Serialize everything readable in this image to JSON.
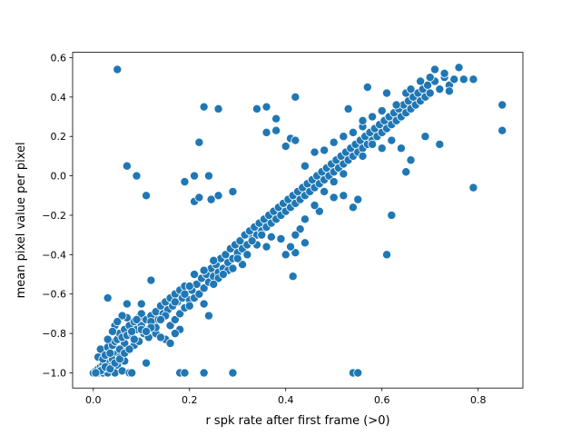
{
  "chart_data": {
    "type": "scatter",
    "title": "",
    "xlabel": "r spk rate after first frame (>0)",
    "ylabel": "mean pixel value per pixel",
    "xlim": [
      -0.043,
      0.893
    ],
    "ylim": [
      -1.077,
      0.627
    ],
    "xticks": [
      0.0,
      0.2,
      0.4,
      0.6,
      0.8
    ],
    "xtick_labels": [
      "0.0",
      "0.2",
      "0.4",
      "0.6",
      "0.8"
    ],
    "yticks": [
      -1.0,
      -0.8,
      -0.6,
      -0.4,
      -0.2,
      0.0,
      0.2,
      0.4,
      0.6
    ],
    "ytick_labels": [
      "−1.0",
      "−0.8",
      "−0.6",
      "−0.4",
      "−0.2",
      "0.0",
      "0.2",
      "0.4",
      "0.6"
    ],
    "grid": false,
    "legend": "none",
    "marker_color": "#1f77b4",
    "marker_edge_color": "#ffffff",
    "points": [
      [
        0.0,
        -1.0
      ],
      [
        0.005,
        -0.99
      ],
      [
        0.01,
        -0.98
      ],
      [
        0.01,
        -1.0
      ],
      [
        0.015,
        -0.97
      ],
      [
        0.02,
        -1.0
      ],
      [
        0.02,
        -0.96
      ],
      [
        0.025,
        -0.99
      ],
      [
        0.03,
        -0.95
      ],
      [
        0.03,
        -1.0
      ],
      [
        0.035,
        -0.97
      ],
      [
        0.04,
        -0.98
      ],
      [
        0.04,
        -0.93
      ],
      [
        0.045,
        -1.0
      ],
      [
        0.05,
        -0.9
      ],
      [
        0.05,
        -0.96
      ],
      [
        0.055,
        -0.92
      ],
      [
        0.06,
        -0.88
      ],
      [
        0.06,
        -0.99
      ],
      [
        0.065,
        -0.85
      ],
      [
        0.07,
        -0.89
      ],
      [
        0.075,
        -1.0
      ],
      [
        0.01,
        -0.92
      ],
      [
        0.015,
        -0.88
      ],
      [
        0.02,
        -0.93
      ],
      [
        0.025,
        -0.91
      ],
      [
        0.03,
        -0.87
      ],
      [
        0.035,
        -0.9
      ],
      [
        0.04,
        -0.86
      ],
      [
        0.045,
        -0.84
      ],
      [
        0.05,
        -0.83
      ],
      [
        0.055,
        -0.8
      ],
      [
        0.06,
        -0.82
      ],
      [
        0.065,
        -0.78
      ],
      [
        0.07,
        -0.81
      ],
      [
        0.075,
        -0.76
      ],
      [
        0.08,
        -0.8
      ],
      [
        0.085,
        -0.74
      ],
      [
        0.09,
        -0.78
      ],
      [
        0.095,
        -0.72
      ],
      [
        0.1,
        -0.76
      ],
      [
        0.1,
        -0.7
      ],
      [
        0.105,
        -0.8
      ],
      [
        0.11,
        -0.73
      ],
      [
        0.115,
        -0.78
      ],
      [
        0.12,
        -0.71
      ],
      [
        0.125,
        -0.75
      ],
      [
        0.13,
        -0.69
      ],
      [
        0.135,
        -0.73
      ],
      [
        0.14,
        -0.66
      ],
      [
        0.145,
        -0.7
      ],
      [
        0.15,
        -0.64
      ],
      [
        0.155,
        -0.68
      ],
      [
        0.16,
        -0.62
      ],
      [
        0.165,
        -0.66
      ],
      [
        0.17,
        -0.6
      ],
      [
        0.175,
        -0.64
      ],
      [
        0.18,
        -0.58
      ],
      [
        0.185,
        -0.62
      ],
      [
        0.19,
        -0.56
      ],
      [
        0.045,
        -0.76
      ],
      [
        0.055,
        -0.88
      ],
      [
        0.065,
        -0.94
      ],
      [
        0.085,
        -0.86
      ],
      [
        0.095,
        -0.84
      ],
      [
        0.115,
        -0.82
      ],
      [
        0.13,
        -0.8
      ],
      [
        0.15,
        -0.83
      ],
      [
        0.16,
        -0.76
      ],
      [
        0.17,
        -0.73
      ],
      [
        0.18,
        -0.7
      ],
      [
        0.19,
        -0.67
      ],
      [
        0.2,
        -0.63
      ],
      [
        0.205,
        -0.58
      ],
      [
        0.21,
        -0.62
      ],
      [
        0.215,
        -0.55
      ],
      [
        0.22,
        -0.6
      ],
      [
        0.225,
        -0.52
      ],
      [
        0.23,
        -0.57
      ],
      [
        0.235,
        -0.5
      ],
      [
        0.24,
        -0.54
      ],
      [
        0.245,
        -0.47
      ],
      [
        0.25,
        -0.51
      ],
      [
        0.255,
        -0.45
      ],
      [
        0.26,
        -0.49
      ],
      [
        0.265,
        -0.42
      ],
      [
        0.27,
        -0.47
      ],
      [
        0.275,
        -0.4
      ],
      [
        0.28,
        -0.44
      ],
      [
        0.285,
        -0.37
      ],
      [
        0.29,
        -0.42
      ],
      [
        0.295,
        -0.35
      ],
      [
        0.3,
        -0.39
      ],
      [
        0.305,
        -0.33
      ],
      [
        0.31,
        -0.37
      ],
      [
        0.315,
        -0.3
      ],
      [
        0.32,
        -0.35
      ],
      [
        0.325,
        -0.28
      ],
      [
        0.33,
        -0.32
      ],
      [
        0.335,
        -0.26
      ],
      [
        0.34,
        -0.3
      ],
      [
        0.345,
        -0.24
      ],
      [
        0.35,
        -0.28
      ],
      [
        0.355,
        -0.22
      ],
      [
        0.36,
        -0.26
      ],
      [
        0.365,
        -0.2
      ],
      [
        0.37,
        -0.24
      ],
      [
        0.375,
        -0.18
      ],
      [
        0.38,
        -0.22
      ],
      [
        0.385,
        -0.16
      ],
      [
        0.39,
        -0.2
      ],
      [
        0.395,
        -0.14
      ],
      [
        0.4,
        -0.18
      ],
      [
        0.405,
        -0.12
      ],
      [
        0.41,
        -0.16
      ],
      [
        0.415,
        -0.1
      ],
      [
        0.42,
        -0.14
      ],
      [
        0.425,
        -0.08
      ],
      [
        0.43,
        -0.12
      ],
      [
        0.435,
        -0.06
      ],
      [
        0.44,
        -0.1
      ],
      [
        0.445,
        -0.04
      ],
      [
        0.45,
        -0.08
      ],
      [
        0.455,
        -0.02
      ],
      [
        0.46,
        -0.06
      ],
      [
        0.465,
        0.0
      ],
      [
        0.47,
        -0.04
      ],
      [
        0.475,
        0.02
      ],
      [
        0.48,
        -0.02
      ],
      [
        0.485,
        0.04
      ],
      [
        0.49,
        0.0
      ],
      [
        0.495,
        0.06
      ],
      [
        0.5,
        0.02
      ],
      [
        0.505,
        0.08
      ],
      [
        0.51,
        0.04
      ],
      [
        0.515,
        0.1
      ],
      [
        0.52,
        0.06
      ],
      [
        0.525,
        0.12
      ],
      [
        0.53,
        0.08
      ],
      [
        0.535,
        0.14
      ],
      [
        0.54,
        0.1
      ],
      [
        0.545,
        0.16
      ],
      [
        0.55,
        0.12
      ],
      [
        0.555,
        0.18
      ],
      [
        0.56,
        0.14
      ],
      [
        0.565,
        0.2
      ],
      [
        0.57,
        0.16
      ],
      [
        0.575,
        0.22
      ],
      [
        0.58,
        0.18
      ],
      [
        0.585,
        0.24
      ],
      [
        0.59,
        0.2
      ],
      [
        0.595,
        0.26
      ],
      [
        0.6,
        0.22
      ],
      [
        0.605,
        0.28
      ],
      [
        0.61,
        0.24
      ],
      [
        0.615,
        0.3
      ],
      [
        0.62,
        0.26
      ],
      [
        0.625,
        0.32
      ],
      [
        0.63,
        0.28
      ],
      [
        0.635,
        0.34
      ],
      [
        0.64,
        0.3
      ],
      [
        0.645,
        0.36
      ],
      [
        0.65,
        0.32
      ],
      [
        0.655,
        0.38
      ],
      [
        0.66,
        0.34
      ],
      [
        0.665,
        0.4
      ],
      [
        0.67,
        0.36
      ],
      [
        0.675,
        0.42
      ],
      [
        0.68,
        0.38
      ],
      [
        0.685,
        0.44
      ],
      [
        0.69,
        0.4
      ],
      [
        0.695,
        0.46
      ],
      [
        0.7,
        0.42
      ],
      [
        0.71,
        0.48
      ],
      [
        0.72,
        0.44
      ],
      [
        0.73,
        0.5
      ],
      [
        0.74,
        0.46
      ],
      [
        0.75,
        0.49
      ],
      [
        0.76,
        0.55
      ],
      [
        0.77,
        0.49
      ],
      [
        0.79,
        0.49
      ],
      [
        0.85,
        0.36
      ],
      [
        0.85,
        0.23
      ],
      [
        0.79,
        -0.06
      ],
      [
        0.05,
        0.54
      ],
      [
        0.07,
        0.05
      ],
      [
        0.09,
        0.0
      ],
      [
        0.11,
        -0.1
      ],
      [
        0.12,
        -0.53
      ],
      [
        0.03,
        -0.62
      ],
      [
        0.07,
        -0.65
      ],
      [
        0.1,
        -0.65
      ],
      [
        0.11,
        -0.95
      ],
      [
        0.08,
        -1.0
      ],
      [
        0.18,
        -1.0
      ],
      [
        0.19,
        -1.0
      ],
      [
        0.23,
        -1.0
      ],
      [
        0.29,
        -1.0
      ],
      [
        0.54,
        -1.0
      ],
      [
        0.55,
        -1.0
      ],
      [
        0.22,
        0.17
      ],
      [
        0.24,
        0.0
      ],
      [
        0.21,
        0.0
      ],
      [
        0.19,
        -0.03
      ],
      [
        0.21,
        -0.13
      ],
      [
        0.22,
        -0.11
      ],
      [
        0.245,
        -0.12
      ],
      [
        0.26,
        -0.1
      ],
      [
        0.29,
        -0.08
      ],
      [
        0.23,
        0.35
      ],
      [
        0.26,
        0.34
      ],
      [
        0.34,
        0.34
      ],
      [
        0.36,
        0.35
      ],
      [
        0.38,
        0.29
      ],
      [
        0.42,
        0.4
      ],
      [
        0.41,
        0.19
      ],
      [
        0.42,
        0.18
      ],
      [
        0.4,
        0.15
      ],
      [
        0.36,
        0.22
      ],
      [
        0.38,
        0.23
      ],
      [
        0.53,
        0.34
      ],
      [
        0.57,
        0.45
      ],
      [
        0.56,
        0.25
      ],
      [
        0.61,
        0.42
      ],
      [
        0.6,
        0.14
      ],
      [
        0.62,
        -0.2
      ],
      [
        0.61,
        -0.4
      ],
      [
        0.55,
        -0.12
      ],
      [
        0.54,
        -0.16
      ],
      [
        0.47,
        -0.18
      ],
      [
        0.52,
        -0.1
      ],
      [
        0.5,
        -0.11
      ],
      [
        0.44,
        -0.34
      ],
      [
        0.42,
        -0.39
      ],
      [
        0.415,
        -0.51
      ],
      [
        0.41,
        -0.36
      ],
      [
        0.4,
        -0.4
      ],
      [
        0.36,
        -0.36
      ],
      [
        0.34,
        -0.35
      ],
      [
        0.31,
        -0.45
      ],
      [
        0.28,
        -0.48
      ],
      [
        0.26,
        -0.52
      ],
      [
        0.25,
        -0.55
      ],
      [
        0.24,
        -0.71
      ],
      [
        0.23,
        -0.65
      ],
      [
        0.2,
        -0.66
      ],
      [
        0.18,
        -0.78
      ],
      [
        0.17,
        -0.8
      ],
      [
        0.16,
        -0.85
      ],
      [
        0.14,
        -0.82
      ],
      [
        0.13,
        -0.77
      ],
      [
        0.12,
        -0.74
      ],
      [
        0.1,
        -0.78
      ],
      [
        0.09,
        -0.73
      ],
      [
        0.08,
        -0.79
      ],
      [
        0.07,
        -0.72
      ],
      [
        0.06,
        -0.71
      ],
      [
        0.05,
        -0.74
      ],
      [
        0.04,
        -0.79
      ],
      [
        0.03,
        -0.83
      ],
      [
        0.44,
        0.05
      ],
      [
        0.46,
        0.12
      ],
      [
        0.48,
        0.13
      ],
      [
        0.5,
        0.17
      ],
      [
        0.52,
        0.2
      ],
      [
        0.54,
        0.22
      ],
      [
        0.56,
        0.28
      ],
      [
        0.58,
        0.3
      ],
      [
        0.6,
        0.33
      ],
      [
        0.63,
        0.36
      ],
      [
        0.65,
        0.42
      ],
      [
        0.66,
        0.44
      ],
      [
        0.68,
        0.48
      ],
      [
        0.7,
        0.5
      ],
      [
        0.71,
        0.54
      ],
      [
        0.73,
        0.52
      ],
      [
        0.74,
        0.43
      ],
      [
        0.72,
        0.16
      ],
      [
        0.69,
        0.2
      ],
      [
        0.66,
        0.08
      ],
      [
        0.65,
        0.02
      ],
      [
        0.64,
        0.14
      ],
      [
        0.62,
        0.18
      ],
      [
        0.58,
        0.16
      ],
      [
        0.56,
        0.1
      ],
      [
        0.52,
        0.01
      ],
      [
        0.5,
        -0.03
      ],
      [
        0.48,
        -0.08
      ],
      [
        0.46,
        -0.15
      ],
      [
        0.44,
        -0.22
      ],
      [
        0.43,
        -0.27
      ],
      [
        0.42,
        -0.3
      ],
      [
        0.39,
        -0.32
      ],
      [
        0.37,
        -0.31
      ],
      [
        0.35,
        -0.3
      ],
      [
        0.33,
        -0.33
      ],
      [
        0.32,
        -0.4
      ],
      [
        0.3,
        -0.42
      ],
      [
        0.29,
        -0.47
      ],
      [
        0.27,
        -0.5
      ],
      [
        0.25,
        -0.43
      ],
      [
        0.23,
        -0.48
      ],
      [
        0.21,
        -0.5
      ],
      [
        0.2,
        -0.56
      ],
      [
        0.19,
        -0.6
      ],
      [
        0.17,
        -0.64
      ],
      [
        0.15,
        -0.71
      ],
      [
        0.14,
        -0.73
      ],
      [
        0.12,
        -0.77
      ],
      [
        0.11,
        -0.79
      ],
      [
        0.02,
        -0.98
      ],
      [
        0.015,
        -0.99
      ],
      [
        0.005,
        -1.0
      ],
      [
        0.025,
        -0.97
      ],
      [
        0.035,
        -0.98
      ],
      [
        0.045,
        -0.95
      ],
      [
        0.055,
        -0.93
      ],
      [
        0.065,
        -0.9
      ],
      [
        0.075,
        -0.88
      ],
      [
        0.085,
        -0.83
      ]
    ]
  }
}
